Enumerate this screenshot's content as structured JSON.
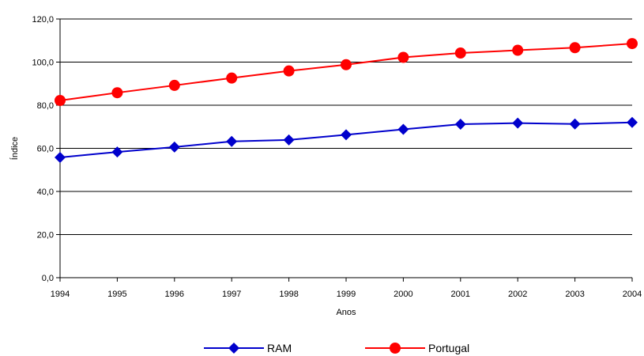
{
  "chart_data": {
    "type": "line",
    "title": "",
    "xlabel": "Anos",
    "ylabel": "Índice",
    "categories": [
      "1994",
      "1995",
      "1996",
      "1997",
      "1998",
      "1999",
      "2000",
      "2001",
      "2002",
      "2003",
      "2004"
    ],
    "yticks": [
      "0,0",
      "20,0",
      "40,0",
      "60,0",
      "80,0",
      "100,0",
      "120,0"
    ],
    "ylim": [
      0,
      120
    ],
    "grid": true,
    "legend_position": "bottom",
    "series": [
      {
        "name": "RAM",
        "color": "#0000CC",
        "marker": "diamond",
        "values": [
          55.8,
          58.3,
          60.6,
          63.2,
          63.9,
          66.3,
          68.8,
          71.2,
          71.7,
          71.3,
          72.0
        ]
      },
      {
        "name": "Portugal",
        "color": "#FF0000",
        "marker": "circle",
        "values": [
          82.2,
          85.8,
          89.2,
          92.6,
          95.9,
          98.8,
          102.2,
          104.2,
          105.5,
          106.7,
          108.6
        ]
      }
    ]
  }
}
